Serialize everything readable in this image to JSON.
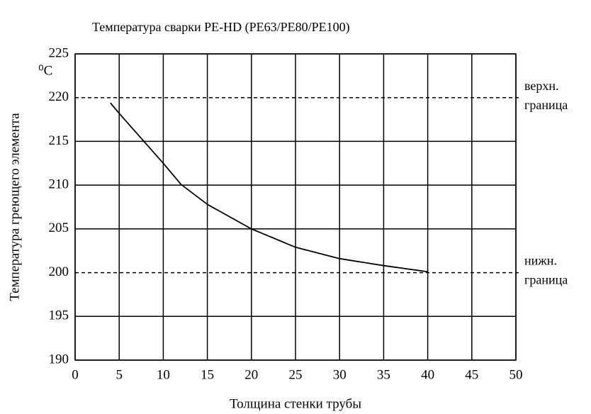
{
  "chart_data": {
    "type": "line",
    "title": "Температура сварки PE-HD (PE63/PE80/PE100)",
    "x_label": "Толщина стенки трубы",
    "y_label": "Температура греющего элемента",
    "y_unit": "⁰C",
    "x": [
      4,
      5,
      10,
      12,
      15,
      20,
      25,
      30,
      35,
      40
    ],
    "series": [
      {
        "color": "#000000",
        "values": [
          219.4,
          218.2,
          212.5,
          210.1,
          207.8,
          205,
          202.9,
          201.6,
          200.8,
          200.1
        ]
      }
    ],
    "xlim": [
      0,
      50
    ],
    "xticks": [
      0,
      5,
      10,
      15,
      20,
      25,
      30,
      35,
      40,
      45,
      50
    ],
    "ylim": [
      190,
      225
    ],
    "yticks": [
      190,
      195,
      200,
      205,
      210,
      215,
      220,
      225
    ],
    "grid": true,
    "limits": [
      {
        "value": 220,
        "lines": [
          "верхн.",
          "граница"
        ]
      },
      {
        "value": 200,
        "lines": [
          "нижн.",
          "граница"
        ]
      }
    ]
  }
}
